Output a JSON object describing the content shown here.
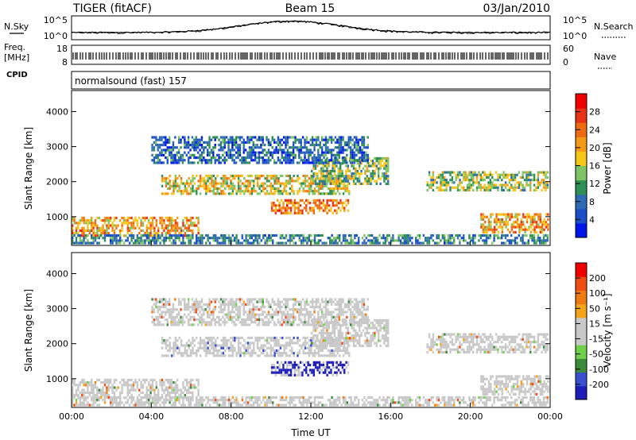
{
  "header": {
    "station": "TIGER (fitACF)",
    "beam": "Beam 15",
    "date": "03/Jan/2010"
  },
  "panels": {
    "nsky_label": "N.Sky",
    "nsearch_label": "N.Search",
    "freq_label_line1": "Freq.",
    "freq_label_line2": "[MHz]",
    "nave_label": "Nave",
    "cpid_label": "CPID",
    "cpid_text": "normalsound (fast) 157",
    "noise_ticks_left": [
      "10^5",
      "10^0"
    ],
    "noise_ticks_right": [
      "10^5",
      "10^0"
    ],
    "freq_ticks_left": [
      "18",
      "8"
    ],
    "freq_ticks_right": [
      "60",
      "0"
    ]
  },
  "colors": {
    "power_scale": [
      "#0016e8",
      "#1a4fc8",
      "#2e6bb5",
      "#2f8f55",
      "#7ec464",
      "#f5c518",
      "#f39a18",
      "#f06a12",
      "#e8331a",
      "#f00000"
    ],
    "velocity_scale": [
      "#1d1db8",
      "#3a4fd0",
      "#3c8a3c",
      "#6fd04a",
      "#c8c8c8",
      "#c8c8c8",
      "#f3a318",
      "#f07a12",
      "#f04d14",
      "#f00000"
    ]
  },
  "chart_data": [
    {
      "type": "heatmap",
      "name": "power",
      "ylabel": "Slant Range [km]",
      "yticks": [
        "1000",
        "2000",
        "3000",
        "4000"
      ],
      "ylim": [
        180,
        4600
      ],
      "colorbar_label": "Power [dB]",
      "colorbar_ticks": [
        "28",
        "24",
        "20",
        "16",
        "12",
        "8",
        "4"
      ],
      "crange": [
        0,
        32
      ]
    },
    {
      "type": "heatmap",
      "name": "velocity",
      "ylabel": "Slant Range [km]",
      "yticks": [
        "1000",
        "2000",
        "3000",
        "4000"
      ],
      "ylim": [
        180,
        4600
      ],
      "colorbar_label": "Velocity [m s⁻¹]",
      "colorbar_ticks": [
        "200",
        "100",
        "50",
        "15",
        "-15",
        "-50",
        "-100",
        "-200"
      ],
      "xlabel": "Time UT",
      "xticks": [
        "00:00",
        "04:00",
        "08:00",
        "12:00",
        "16:00",
        "20:00",
        "00:00"
      ],
      "xlim_hours": [
        0,
        24
      ]
    }
  ]
}
